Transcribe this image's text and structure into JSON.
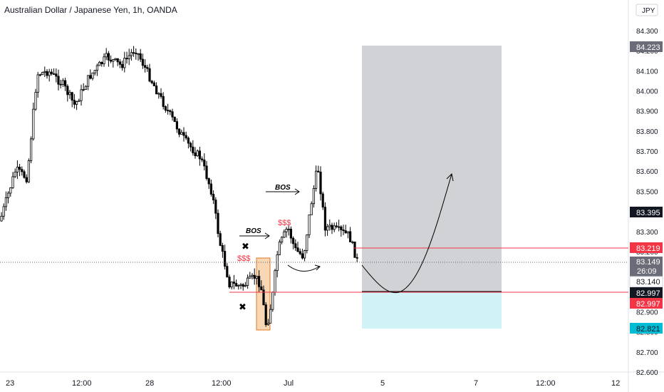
{
  "header": {
    "symbol_title": "Australian Dollar / Japanese Yen, 1h, OANDA",
    "currency_button": "JPY"
  },
  "price_axis": {
    "ticks": [
      "84.300",
      "84.200",
      "84.100",
      "84.000",
      "83.900",
      "83.800",
      "83.700",
      "83.600",
      "83.500",
      "83.400",
      "83.300",
      "83.200",
      "83.100",
      "83.000",
      "82.900",
      "82.800",
      "82.700",
      "82.600"
    ],
    "labels": {
      "take_profit": "84.223",
      "last_swing": "83.395",
      "stop_level": "83.219",
      "current_price": "83.149",
      "countdown": "26:09",
      "mid_value": "83.140",
      "entry_black": "82.997",
      "entry_red": "82.997",
      "stop_loss": "82.821"
    }
  },
  "time_axis": {
    "labels": [
      "23",
      "12:00",
      "28",
      "12:00",
      "Jul",
      "5",
      "7",
      "12:00",
      "12"
    ]
  },
  "annotations": {
    "bos_upper": "BOS",
    "bos_lower": "BOS",
    "liquidity_upper": "$$$",
    "liquidity_lower": "$$$"
  },
  "colors": {
    "candle": "#000000",
    "red_line": "#f23645",
    "red_tag": "#f23645",
    "black_tag": "#131722",
    "gray_tag": "#6a6d78",
    "teal_tag": "#00bcd4",
    "target_zone": "#cfd0d3",
    "stop_zone": "#d2f3f6",
    "order_block": "#f5c99b",
    "order_block_border": "#e07a1f",
    "axis_text": "#131722"
  },
  "chart_data": {
    "type": "candlestick",
    "instrument": "Australian Dollar / Japanese Yen",
    "interval": "1h",
    "source": "OANDA",
    "currency": "JPY",
    "y_range": [
      82.6,
      84.3
    ],
    "key_levels": {
      "last_price": 83.149,
      "swing_high": 83.395,
      "stop_line": 83.219,
      "entry": 82.997,
      "target": 84.223,
      "stop_loss": 82.821
    },
    "swing_points": [
      [
        "23",
        83.4
      ],
      [
        "23",
        83.6
      ],
      [
        "12:00",
        84.1
      ],
      [
        "28",
        84.05
      ],
      [
        "28",
        84.15
      ],
      [
        "12:00",
        83.6
      ],
      [
        "12:00",
        83.05
      ],
      [
        "12:00",
        83.0
      ],
      [
        "Jul",
        83.3
      ],
      [
        "Jul",
        83.17
      ],
      [
        "Jul",
        83.55
      ],
      [
        "Jul",
        83.68
      ],
      [
        "Jul",
        83.3
      ],
      [
        "Jul",
        83.15
      ]
    ]
  }
}
